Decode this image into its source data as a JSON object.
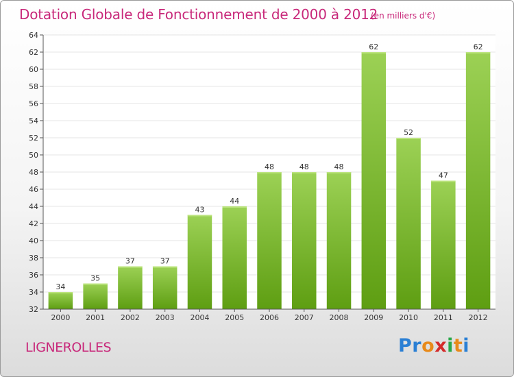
{
  "title": "Dotation Globale de Fonctionnement de 2000 à 2012",
  "subtitle": "(en milliers d'€)",
  "commune": "LIGNEROLLES",
  "logo": {
    "text": "Proxiti",
    "letters": [
      {
        "ch": "P",
        "color": "#2a7fd4"
      },
      {
        "ch": "r",
        "color": "#2a7fd4"
      },
      {
        "ch": "o",
        "color": "#e88a1a"
      },
      {
        "ch": "x",
        "color": "#d42a2a"
      },
      {
        "ch": "i",
        "color": "#2aa84a"
      },
      {
        "ch": "t",
        "color": "#e88a1a"
      },
      {
        "ch": "i",
        "color": "#2a7fd4"
      }
    ]
  },
  "colors": {
    "title": "#c8287a",
    "bar_top": "#9cd155",
    "bar_bottom": "#5e9e12",
    "axis": "#555555",
    "grid": "#e4e4e4"
  },
  "chart_data": {
    "type": "bar",
    "categories": [
      "2000",
      "2001",
      "2002",
      "2003",
      "2004",
      "2005",
      "2006",
      "2007",
      "2008",
      "2009",
      "2010",
      "2011",
      "2012"
    ],
    "values": [
      34,
      35,
      37,
      37,
      43,
      44,
      48,
      48,
      48,
      62,
      52,
      47,
      62
    ],
    "ylim": [
      32,
      64
    ],
    "yticks": [
      32,
      34,
      36,
      38,
      40,
      42,
      44,
      46,
      48,
      50,
      52,
      54,
      56,
      58,
      60,
      62,
      64
    ],
    "grid": true,
    "legend": "none"
  }
}
